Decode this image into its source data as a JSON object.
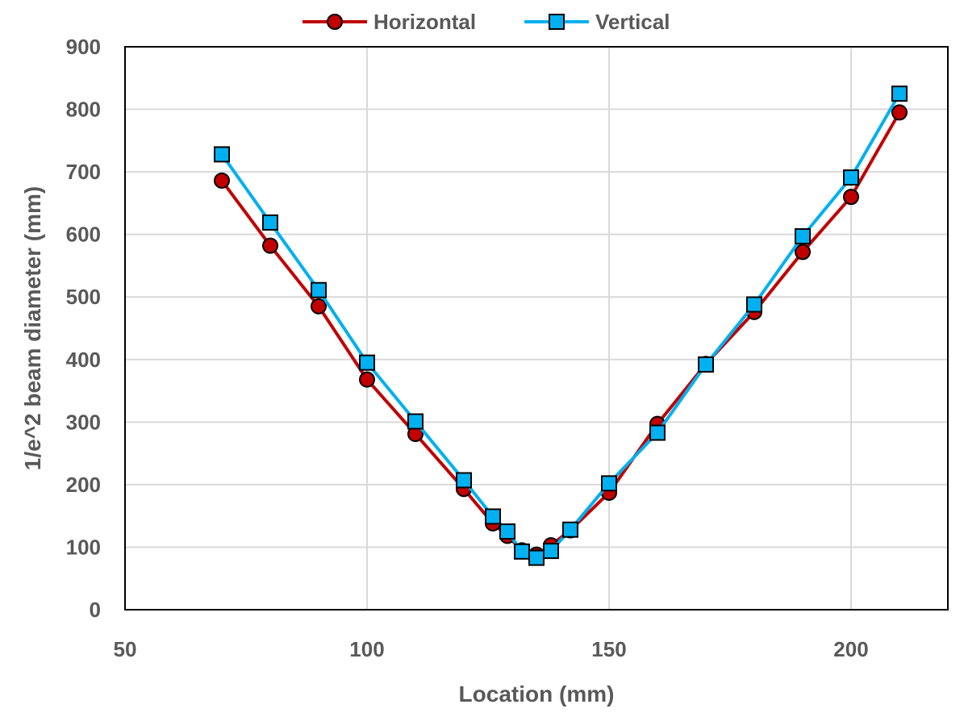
{
  "chart_data": {
    "type": "line",
    "title": "",
    "xlabel": "Location (mm)",
    "ylabel": "1/e^2 beam diameter (mm)",
    "xlim": [
      50,
      220
    ],
    "ylim": [
      0,
      900
    ],
    "x_ticks": [
      50,
      100,
      150,
      200
    ],
    "y_ticks": [
      0,
      100,
      200,
      300,
      400,
      500,
      600,
      700,
      800,
      900
    ],
    "grid": true,
    "legend_position": "top",
    "series": [
      {
        "name": "Horizontal",
        "color": "#c00000",
        "marker": "circle",
        "x": [
          70,
          80,
          90,
          100,
          110,
          120,
          126,
          129,
          132,
          135,
          138,
          142,
          150,
          160,
          170,
          180,
          190,
          200,
          210
        ],
        "y": [
          686,
          582,
          485,
          368,
          281,
          193,
          138,
          118,
          95,
          88,
          103,
          127,
          187,
          297,
          393,
          476,
          572,
          660,
          795
        ]
      },
      {
        "name": "Vertical",
        "color": "#00b0f0",
        "marker": "square",
        "x": [
          70,
          80,
          90,
          100,
          110,
          120,
          126,
          129,
          132,
          135,
          138,
          142,
          150,
          160,
          170,
          180,
          190,
          200,
          210
        ],
        "y": [
          728,
          619,
          511,
          395,
          301,
          207,
          149,
          125,
          93,
          83,
          94,
          128,
          202,
          283,
          392,
          488,
          597,
          691,
          825
        ]
      }
    ]
  }
}
